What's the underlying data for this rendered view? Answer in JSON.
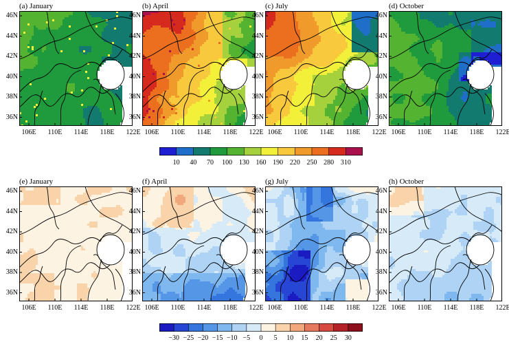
{
  "figure": {
    "latitude_ticks": [
      "46N",
      "44N",
      "42N",
      "40N",
      "38N",
      "36N"
    ],
    "longitude_ticks": [
      "106E",
      "110E",
      "114E",
      "118E",
      "122E"
    ],
    "top_row": {
      "panels": [
        {
          "title": "(a) January",
          "palette": "january_abs"
        },
        {
          "title": "(b) April",
          "palette": "april_abs"
        },
        {
          "title": "(c) July",
          "palette": "july_abs"
        },
        {
          "title": "(d) October",
          "palette": "october_abs"
        }
      ],
      "colorbar": {
        "labels": [
          "10",
          "40",
          "70",
          "100",
          "130",
          "160",
          "190",
          "220",
          "250",
          "280",
          "310"
        ],
        "colors": [
          "#1e1ed2",
          "#1f6ec8",
          "#127a6e",
          "#1f9a3c",
          "#54b431",
          "#a5d23c",
          "#f3f03a",
          "#f8c93c",
          "#f09a2c",
          "#ec6f1f",
          "#d62a1e",
          "#a8114b"
        ]
      }
    },
    "bottom_row": {
      "panels": [
        {
          "title": "(e) January",
          "palette": "january_diff"
        },
        {
          "title": "(f) April",
          "palette": "april_diff"
        },
        {
          "title": "(g) July",
          "palette": "july_diff"
        },
        {
          "title": "(h) October",
          "palette": "october_diff"
        }
      ],
      "colorbar": {
        "labels": [
          "−30",
          "−25",
          "−20",
          "−15",
          "−10",
          "−5",
          "0",
          "5",
          "10",
          "15",
          "20",
          "25",
          "30"
        ],
        "colors": [
          "#1b1bc2",
          "#2746d3",
          "#3575de",
          "#5597e6",
          "#7fb8ee",
          "#aed3f5",
          "#d6eaf8",
          "#fdf3e3",
          "#f9d4ab",
          "#f1a87c",
          "#e67a5c",
          "#d64a3f",
          "#b52226",
          "#8c0f1b"
        ]
      }
    }
  }
}
